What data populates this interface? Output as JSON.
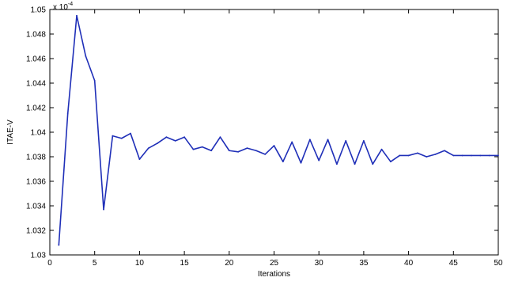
{
  "chart_data": {
    "type": "line",
    "title": "",
    "xlabel": "Iterations",
    "ylabel": "ITAE-V",
    "y_multiplier_label": "x 10",
    "y_multiplier_exponent": "-4",
    "xlim": [
      0,
      50
    ],
    "ylim": [
      1.03,
      1.05
    ],
    "xticks": [
      0,
      5,
      10,
      15,
      20,
      25,
      30,
      35,
      40,
      45,
      50
    ],
    "yticks": [
      1.03,
      1.032,
      1.034,
      1.036,
      1.038,
      1.04,
      1.042,
      1.044,
      1.046,
      1.048,
      1.05
    ],
    "ytick_labels": [
      "1.03",
      "1.032",
      "1.034",
      "1.036",
      "1.038",
      "1.04",
      "1.042",
      "1.044",
      "1.046",
      "1.048",
      "1.05"
    ],
    "grid": true,
    "series": [
      {
        "color": "#1f2fb8",
        "x": [
          1,
          2,
          3,
          4,
          5,
          6,
          7,
          8,
          9,
          10,
          11,
          12,
          13,
          14,
          15,
          16,
          17,
          18,
          19,
          20,
          21,
          22,
          23,
          24,
          25,
          26,
          27,
          28,
          29,
          30,
          31,
          32,
          33,
          34,
          35,
          36,
          37,
          38,
          39,
          40,
          41,
          42,
          43,
          44,
          45,
          46,
          47,
          48,
          49,
          50
        ],
        "values": [
          1.0308,
          1.0415,
          1.0495,
          1.0462,
          1.0442,
          1.0337,
          1.0397,
          1.0395,
          1.0399,
          1.0378,
          1.0387,
          1.0391,
          1.0396,
          1.0393,
          1.0396,
          1.0386,
          1.0388,
          1.0385,
          1.0396,
          1.0385,
          1.0384,
          1.0387,
          1.0385,
          1.0382,
          1.0389,
          1.0376,
          1.0392,
          1.0375,
          1.0394,
          1.0377,
          1.0394,
          1.0374,
          1.0393,
          1.0374,
          1.0393,
          1.0374,
          1.0386,
          1.0376,
          1.0381,
          1.0381,
          1.0383,
          1.038,
          1.0382,
          1.0385,
          1.0381,
          1.0381,
          1.0381,
          1.0381,
          1.0381,
          1.0381
        ]
      }
    ]
  }
}
